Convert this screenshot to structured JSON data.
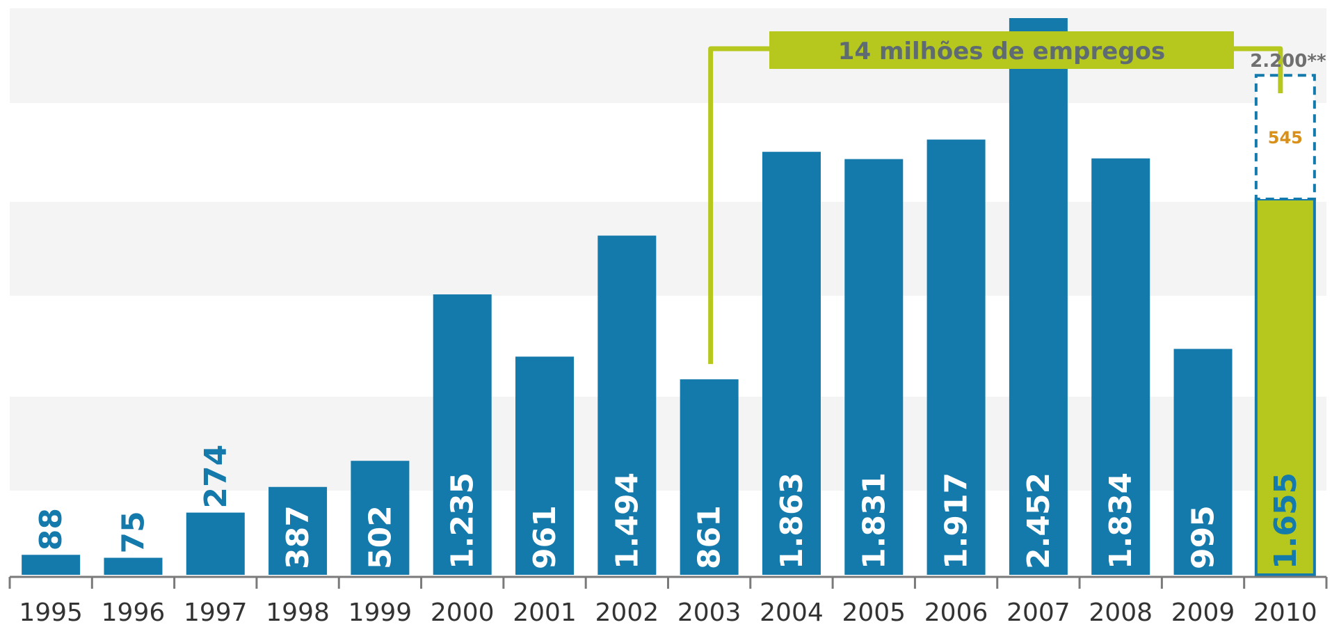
{
  "chart_data": {
    "type": "bar",
    "title": "",
    "xlabel": "",
    "ylabel": "",
    "ylim": [
      0,
      2452
    ],
    "grid": "horizontal bands",
    "categories": [
      "1995",
      "1996",
      "1997",
      "1998",
      "1999",
      "2000",
      "2001",
      "2002",
      "2003",
      "2004",
      "2005",
      "2006",
      "2007",
      "2008",
      "2009",
      "2010"
    ],
    "values": [
      88,
      75,
      274,
      387,
      502,
      1235,
      961,
      1494,
      861,
      1863,
      1831,
      1917,
      2452,
      1834,
      995,
      1655
    ],
    "value_labels": [
      "88",
      "75",
      "274",
      "387",
      "502",
      "1.235",
      "961",
      "1.494",
      "861",
      "1.863",
      "1.831",
      "1.917",
      "2.452",
      "1.834",
      "995",
      "1.655"
    ],
    "highlight_category": "2010",
    "stacked_projection": {
      "category": "2010",
      "value": 545,
      "label": "545",
      "total": 2200,
      "total_label": "2.200**"
    },
    "annotation": {
      "text": "14 milhões de empregos",
      "from_category": "2003",
      "to_category": "2010"
    },
    "colors": {
      "bar": "#1479ab",
      "highlight": "#b6c81e",
      "highlight_border": "#1479ab",
      "projection_border": "#1479ab",
      "projection_label": "#d9901a",
      "bracket": "#b6c81e",
      "annotation_text": "#5e6b73",
      "band": "#f4f4f4",
      "axis": "#7a7a7a",
      "tick_label": "#333333",
      "value_label_inside": "#ffffff",
      "value_label_outside": "#1479ab",
      "total_label": "#6f6f6f"
    }
  }
}
